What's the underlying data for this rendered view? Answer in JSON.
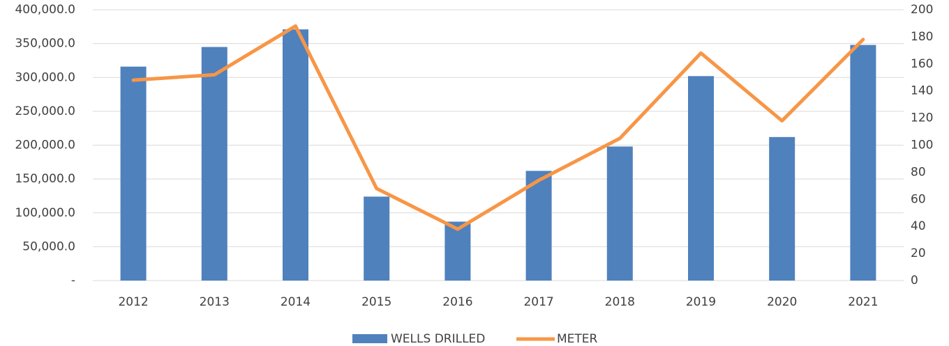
{
  "chart_data": {
    "type": "bar-line",
    "categories": [
      "2012",
      "2013",
      "2014",
      "2015",
      "2016",
      "2017",
      "2018",
      "2019",
      "2020",
      "2021"
    ],
    "series": [
      {
        "name": "WELLS DRILLED",
        "color": "#4f81bd",
        "type": "bar",
        "values": [
          316000,
          345000,
          371000,
          124000,
          87000,
          162000,
          198000,
          302000,
          212000,
          348000
        ]
      },
      {
        "name": "METER",
        "color": "#f79646",
        "type": "line",
        "axis": "y2",
        "values": [
          148,
          152,
          188,
          68,
          38,
          74,
          105,
          168,
          118,
          178
        ]
      }
    ],
    "ylim": [
      0,
      400000
    ],
    "yticks": [
      {
        "value": 0,
        "label": "-"
      },
      {
        "value": 50000,
        "label": "50,000.0"
      },
      {
        "value": 100000,
        "label": "100,000.0"
      },
      {
        "value": 150000,
        "label": "150,000.0"
      },
      {
        "value": 200000,
        "label": "200,000.0"
      },
      {
        "value": 250000,
        "label": "250,000.0"
      },
      {
        "value": 300000,
        "label": "300,000.0"
      },
      {
        "value": 350000,
        "label": "350,000.0"
      },
      {
        "value": 400000,
        "label": "400,000.0"
      }
    ],
    "y2lim": [
      0,
      200
    ],
    "y2ticks": [
      0,
      20,
      40,
      60,
      80,
      100,
      120,
      140,
      160,
      180,
      200
    ],
    "grid": true,
    "legend": "bottom"
  }
}
